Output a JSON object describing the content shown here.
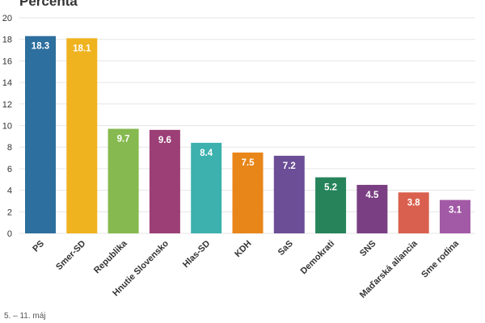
{
  "chart_data": {
    "type": "bar",
    "title": "Percentá",
    "xlabel": "",
    "ylabel": "",
    "ylim": [
      0,
      20
    ],
    "yticks": [
      0,
      2,
      4,
      6,
      8,
      10,
      12,
      14,
      16,
      18,
      20
    ],
    "grid": true,
    "categories": [
      "PS",
      "Smer-SD",
      "Republika",
      "Hnutie Slovensko",
      "Hlas-SD",
      "KDH",
      "SaS",
      "Demokrati",
      "SNS",
      "Maďarská aliancia",
      "Sme rodina"
    ],
    "values": [
      18.3,
      18.1,
      9.7,
      9.6,
      8.4,
      7.5,
      7.2,
      5.2,
      4.5,
      3.8,
      3.1
    ],
    "value_labels": [
      "18.3",
      "18.1",
      "9.7",
      "9.6",
      "8.4",
      "7.5",
      "7.2",
      "5.2",
      "4.5",
      "3.8",
      "3.1"
    ],
    "colors": [
      "#2d6f9e",
      "#efb31f",
      "#86b94f",
      "#9c3f76",
      "#3cb1ad",
      "#e8861a",
      "#6c4e97",
      "#26835a",
      "#7a3f83",
      "#d9604e",
      "#a35aa6"
    ]
  },
  "footnote": "5. – 11. máj"
}
